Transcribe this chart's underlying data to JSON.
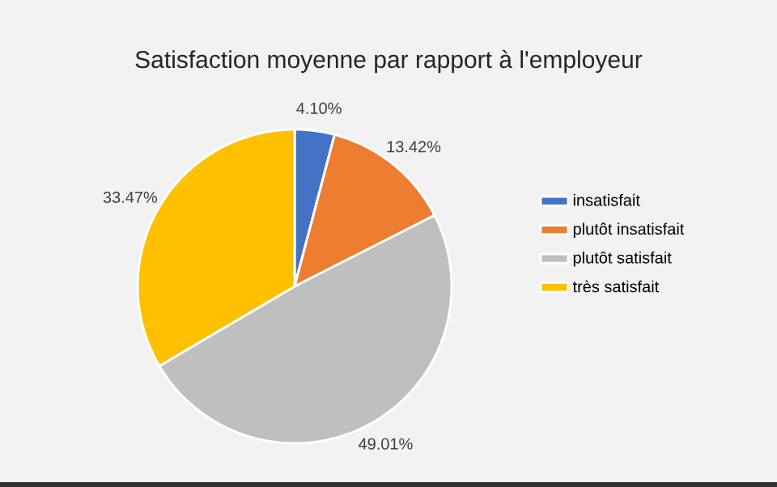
{
  "chart_data": {
    "type": "pie",
    "title": "Satisfaction moyenne par rapport à l'employeur",
    "categories": [
      "insatisfait",
      "plutôt insatisfait",
      "plutôt satisfait",
      "très satisfait"
    ],
    "values": [
      4.1,
      13.42,
      49.01,
      33.47
    ],
    "colors": [
      "#4472c4",
      "#ed7d31",
      "#bfbfbf",
      "#ffc000"
    ],
    "value_labels": [
      "4.10%",
      "13.42%",
      "49.01%",
      "33.47%"
    ],
    "legend": "right"
  }
}
